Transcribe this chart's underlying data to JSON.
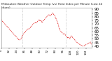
{
  "title": "Milwaukee Weather Outdoor Temp (vs) Heat Index per Minute (Last 24 Hours)",
  "line_color": "#dd0000",
  "bg_color": "#ffffff",
  "plot_bg": "#ffffff",
  "ylim": [
    38,
    92
  ],
  "yticks": [
    40,
    45,
    50,
    55,
    60,
    65,
    70,
    75,
    80,
    85,
    90
  ],
  "ylabel_fontsize": 4.0,
  "title_fontsize": 3.0,
  "y_values": [
    76,
    75,
    74,
    73,
    72,
    71,
    70,
    69,
    68,
    67,
    66,
    65,
    64,
    63,
    62,
    61,
    60,
    59,
    58,
    57,
    56,
    55,
    54,
    53,
    52,
    51,
    50,
    49,
    48.5,
    48.5,
    49,
    50,
    52,
    54,
    56,
    57,
    58,
    59,
    60,
    61,
    62,
    63,
    63.5,
    63,
    64,
    65,
    66,
    67,
    68,
    69,
    70,
    71,
    71.5,
    72,
    71,
    72,
    73,
    74,
    75,
    76,
    75,
    74,
    75,
    73,
    72,
    74,
    75,
    76,
    77,
    78,
    79,
    80,
    81,
    82,
    83,
    82,
    81,
    82,
    83,
    84,
    85,
    84,
    83,
    82,
    80,
    78,
    76,
    74,
    72,
    68,
    65,
    63,
    61,
    60,
    59,
    58,
    57,
    56,
    57,
    56,
    55,
    54,
    53,
    52,
    51,
    52,
    51,
    50,
    52,
    54,
    53,
    52,
    51,
    50,
    49,
    48,
    47,
    46,
    45,
    44,
    43.5,
    43,
    42.5,
    42,
    41.5,
    41,
    40.5,
    40,
    40,
    40.5,
    41,
    41.5,
    42,
    42.5,
    43,
    43.5,
    44,
    44.5,
    45,
    45.5,
    43,
    42
  ],
  "vline_positions": [
    33,
    100
  ],
  "vline_color": "#999999",
  "xtick_step": 12
}
